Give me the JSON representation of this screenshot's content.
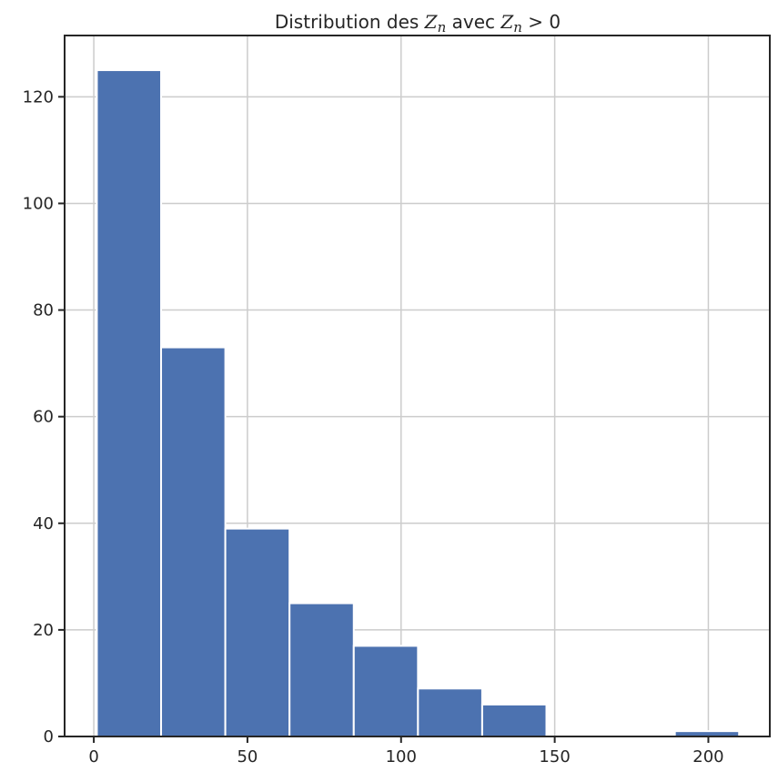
{
  "chart_data": {
    "type": "bar",
    "title": {
      "parts": [
        {
          "text": "Distribution des ",
          "math": false
        },
        {
          "text": "Z",
          "math": true
        },
        {
          "text": "n",
          "math": true,
          "sub": true
        },
        {
          "text": " avec ",
          "math": false
        },
        {
          "text": "Z",
          "math": true
        },
        {
          "text": "n",
          "math": true,
          "sub": true
        },
        {
          "text": " > 0",
          "math": false
        }
      ]
    },
    "xlabel": "",
    "ylabel": "",
    "xlim": [
      -9.5,
      220
    ],
    "ylim": [
      0,
      131.5
    ],
    "xticks": [
      0,
      50,
      100,
      150,
      200
    ],
    "yticks": [
      0,
      20,
      40,
      60,
      80,
      100,
      120
    ],
    "grid": true,
    "bar_color": "#4c72b0",
    "bins": [
      {
        "x0": 1,
        "x1": 21.9,
        "count": 125
      },
      {
        "x0": 21.9,
        "x1": 42.8,
        "count": 73
      },
      {
        "x0": 42.8,
        "x1": 63.7,
        "count": 39
      },
      {
        "x0": 63.7,
        "x1": 84.6,
        "count": 25
      },
      {
        "x0": 84.6,
        "x1": 105.5,
        "count": 17
      },
      {
        "x0": 105.5,
        "x1": 126.4,
        "count": 9
      },
      {
        "x0": 126.4,
        "x1": 147.3,
        "count": 6
      },
      {
        "x0": 147.3,
        "x1": 168.2,
        "count": 0
      },
      {
        "x0": 168.2,
        "x1": 189.1,
        "count": 0
      },
      {
        "x0": 189.1,
        "x1": 210,
        "count": 1
      }
    ]
  }
}
